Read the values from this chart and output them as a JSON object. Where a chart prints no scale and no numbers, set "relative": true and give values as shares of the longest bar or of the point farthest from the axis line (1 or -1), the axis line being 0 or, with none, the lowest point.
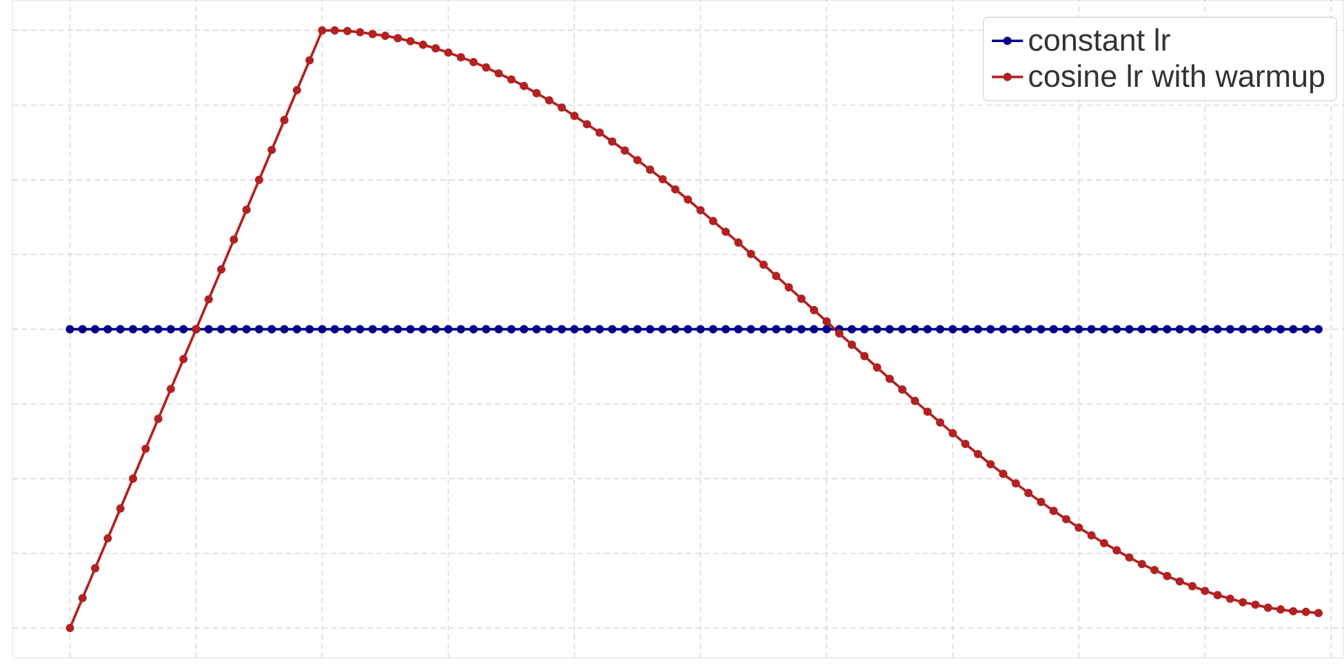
{
  "chart_data": {
    "type": "line",
    "relative": true,
    "grid": true,
    "legend": "top right",
    "marker": "circle",
    "line_style": "solid",
    "categories": [
      null,
      null,
      null,
      null,
      null,
      null,
      null,
      null,
      null,
      null,
      null,
      null,
      null,
      null,
      null,
      null,
      null,
      null,
      null,
      null,
      null,
      null,
      null,
      null,
      null,
      null,
      null,
      null,
      null,
      null,
      null,
      null,
      null,
      null,
      null,
      null,
      null,
      null,
      null,
      null,
      null,
      null,
      null,
      null,
      null,
      null,
      null,
      null,
      null,
      null,
      null,
      null,
      null,
      null,
      null,
      null,
      null,
      null,
      null,
      null,
      null,
      null,
      null,
      null,
      null,
      null,
      null,
      null,
      null,
      null,
      null,
      null,
      null,
      null,
      null,
      null,
      null,
      null,
      null,
      null,
      null,
      null,
      null,
      null,
      null,
      null,
      null,
      null,
      null,
      null,
      null,
      null,
      null,
      null,
      null,
      null,
      null,
      null,
      null,
      null
    ],
    "series": [
      {
        "name": "constant lr",
        "color": "#00008b",
        "values": [
          0.5,
          0.5,
          0.5,
          0.5,
          0.5,
          0.5,
          0.5,
          0.5,
          0.5,
          0.5,
          0.5,
          0.5,
          0.5,
          0.5,
          0.5,
          0.5,
          0.5,
          0.5,
          0.5,
          0.5,
          0.5,
          0.5,
          0.5,
          0.5,
          0.5,
          0.5,
          0.5,
          0.5,
          0.5,
          0.5,
          0.5,
          0.5,
          0.5,
          0.5,
          0.5,
          0.5,
          0.5,
          0.5,
          0.5,
          0.5,
          0.5,
          0.5,
          0.5,
          0.5,
          0.5,
          0.5,
          0.5,
          0.5,
          0.5,
          0.5,
          0.5,
          0.5,
          0.5,
          0.5,
          0.5,
          0.5,
          0.5,
          0.5,
          0.5,
          0.5,
          0.5,
          0.5,
          0.5,
          0.5,
          0.5,
          0.5,
          0.5,
          0.5,
          0.5,
          0.5,
          0.5,
          0.5,
          0.5,
          0.5,
          0.5,
          0.5,
          0.5,
          0.5,
          0.5,
          0.5,
          0.5,
          0.5,
          0.5,
          0.5,
          0.5,
          0.5,
          0.5,
          0.5,
          0.5,
          0.5,
          0.5,
          0.5,
          0.5,
          0.5,
          0.5,
          0.5,
          0.5,
          0.5,
          0.5,
          0.5
        ]
      },
      {
        "name": "cosine lr with warmup",
        "color": "#b22222",
        "values": [
          0,
          0.05,
          0.1,
          0.15,
          0.2,
          0.25,
          0.3,
          0.35,
          0.4,
          0.45,
          0.5,
          0.55,
          0.6,
          0.65,
          0.7,
          0.75,
          0.8,
          0.85,
          0.9,
          0.95,
          1,
          1.0,
          0.999,
          0.997,
          0.994,
          0.991,
          0.987,
          0.982,
          0.976,
          0.97,
          0.963,
          0.955,
          0.947,
          0.938,
          0.928,
          0.918,
          0.907,
          0.895,
          0.883,
          0.871,
          0.857,
          0.843,
          0.829,
          0.814,
          0.799,
          0.783,
          0.767,
          0.751,
          0.734,
          0.717,
          0.699,
          0.681,
          0.663,
          0.645,
          0.626,
          0.608,
          0.589,
          0.57,
          0.551,
          0.532,
          0.513,
          0.493,
          0.474,
          0.455,
          0.436,
          0.417,
          0.399,
          0.38,
          0.362,
          0.344,
          0.326,
          0.308,
          0.291,
          0.274,
          0.258,
          0.242,
          0.226,
          0.211,
          0.196,
          0.182,
          0.168,
          0.155,
          0.142,
          0.13,
          0.118,
          0.107,
          0.097,
          0.087,
          0.078,
          0.07,
          0.062,
          0.055,
          0.049,
          0.043,
          0.039,
          0.034,
          0.031,
          0.028,
          0.027,
          0.025
        ]
      }
    ]
  }
}
